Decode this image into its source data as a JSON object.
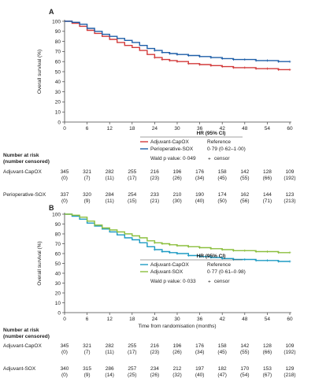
{
  "chart_data": [
    {
      "type": "line",
      "panel": "A",
      "ylabel": "Overall survival (%)",
      "xlabel": "",
      "xlim": [
        0,
        60
      ],
      "ylim": [
        0,
        100
      ],
      "x_ticks": [
        0,
        6,
        12,
        18,
        24,
        30,
        36,
        42,
        48,
        54,
        60
      ],
      "y_ticks": [
        0,
        10,
        20,
        30,
        40,
        50,
        60,
        70,
        80,
        90,
        100
      ],
      "series": [
        {
          "name": "Adjuvant-CapOX",
          "color": "#d23a3a",
          "x": [
            0,
            2,
            4,
            6,
            8,
            10,
            12,
            14,
            16,
            18,
            20,
            22,
            24,
            26,
            28,
            30,
            33,
            36,
            39,
            42,
            45,
            48,
            51,
            54,
            57,
            60
          ],
          "y": [
            100,
            98,
            95,
            91,
            88,
            85,
            82,
            79,
            76,
            74,
            71,
            67,
            64,
            62,
            61,
            60,
            58,
            57,
            56,
            55,
            54,
            54,
            53,
            53,
            52,
            52
          ]
        },
        {
          "name": "Perioperative-SOX",
          "color": "#1f5fa8",
          "x": [
            0,
            2,
            4,
            6,
            8,
            10,
            12,
            14,
            16,
            18,
            20,
            22,
            24,
            26,
            28,
            30,
            33,
            36,
            39,
            42,
            45,
            48,
            51,
            54,
            57,
            60
          ],
          "y": [
            100,
            99,
            97,
            93,
            90,
            87,
            85,
            83,
            81,
            79,
            76,
            73,
            71,
            69,
            68,
            67,
            66,
            65,
            64,
            63,
            62,
            62,
            61,
            61,
            60,
            60
          ]
        }
      ],
      "legend": {
        "header": "HR (95% CI)",
        "entries": [
          {
            "label": "Adjuvant-CapOX",
            "hr": "Reference"
          },
          {
            "label": "Perioperative-SOX",
            "hr": "0·79 (0·62–1·00)"
          }
        ],
        "wald": "Wald p value: 0·049",
        "censor": "censor",
        "censor_symbol": "+"
      },
      "risk_table": {
        "title_line1": "Number at risk",
        "title_line2": "(number censored)",
        "rows": [
          {
            "label": "Adjuvant-CapOX",
            "at_risk": [
              "345",
              "321",
              "282",
              "255",
              "216",
              "196",
              "176",
              "158",
              "142",
              "128",
              "109"
            ],
            "censored": [
              "(0)",
              "(7)",
              "(11)",
              "(17)",
              "(23)",
              "(26)",
              "(34)",
              "(45)",
              "(55)",
              "(66)",
              "(192)"
            ]
          },
          {
            "label": "Perioperative-SOX",
            "at_risk": [
              "337",
              "320",
              "284",
              "254",
              "233",
              "210",
              "190",
              "174",
              "162",
              "144",
              "123"
            ],
            "censored": [
              "(0)",
              "(9)",
              "(11)",
              "(15)",
              "(21)",
              "(30)",
              "(40)",
              "(50)",
              "(56)",
              "(71)",
              "(213)"
            ]
          }
        ]
      }
    },
    {
      "type": "line",
      "panel": "B",
      "ylabel": "Overall survival (%)",
      "xlabel": "Time from randomisation (months)",
      "xlim": [
        0,
        60
      ],
      "ylim": [
        0,
        100
      ],
      "x_ticks": [
        0,
        6,
        12,
        18,
        24,
        30,
        36,
        42,
        48,
        54,
        60
      ],
      "y_ticks": [
        0,
        10,
        20,
        30,
        40,
        50,
        60,
        70,
        80,
        90,
        100
      ],
      "series": [
        {
          "name": "Adjuvant-CapOX",
          "color": "#1e9bc4",
          "x": [
            0,
            2,
            4,
            6,
            8,
            10,
            12,
            14,
            16,
            18,
            20,
            22,
            24,
            26,
            28,
            30,
            33,
            36,
            39,
            42,
            45,
            48,
            51,
            54,
            57,
            60
          ],
          "y": [
            100,
            98,
            95,
            91,
            88,
            85,
            82,
            79,
            76,
            74,
            71,
            67,
            64,
            62,
            61,
            60,
            58,
            57,
            56,
            55,
            54,
            54,
            53,
            53,
            52,
            52
          ]
        },
        {
          "name": "Adjuvant-SOX",
          "color": "#8cbf3f",
          "x": [
            0,
            2,
            4,
            6,
            8,
            10,
            12,
            14,
            16,
            18,
            20,
            22,
            24,
            26,
            28,
            30,
            33,
            36,
            39,
            42,
            45,
            48,
            51,
            54,
            57,
            60
          ],
          "y": [
            100,
            99,
            97,
            93,
            89,
            86,
            84,
            82,
            80,
            78,
            76,
            73,
            71,
            70,
            69,
            68,
            67,
            66,
            65,
            64,
            63,
            63,
            62,
            62,
            61,
            61
          ]
        }
      ],
      "legend": {
        "header": "HR (95% CI)",
        "entries": [
          {
            "label": "Adjuvant-CapOX",
            "hr": "Reference"
          },
          {
            "label": "Adjuvant-SOX",
            "hr": "0·77 (0·61–0·98)"
          }
        ],
        "wald": "Wald p value: 0·033",
        "censor": "censor",
        "censor_symbol": "+"
      },
      "risk_table": {
        "title_line1": "Number at risk",
        "title_line2": "(number censored)",
        "rows": [
          {
            "label": "Adjuvant-CapOX",
            "at_risk": [
              "345",
              "321",
              "282",
              "255",
              "216",
              "196",
              "176",
              "158",
              "142",
              "128",
              "109"
            ],
            "censored": [
              "(0)",
              "(7)",
              "(11)",
              "(17)",
              "(23)",
              "(26)",
              "(34)",
              "(45)",
              "(55)",
              "(66)",
              "(192)"
            ]
          },
          {
            "label": "Adjuvant-SOX",
            "at_risk": [
              "340",
              "315",
              "286",
              "257",
              "234",
              "212",
              "197",
              "182",
              "170",
              "153",
              "129"
            ],
            "censored": [
              "(0)",
              "(9)",
              "(14)",
              "(25)",
              "(26)",
              "(32)",
              "(40)",
              "(47)",
              "(54)",
              "(67)",
              "(218)"
            ]
          }
        ]
      }
    }
  ]
}
